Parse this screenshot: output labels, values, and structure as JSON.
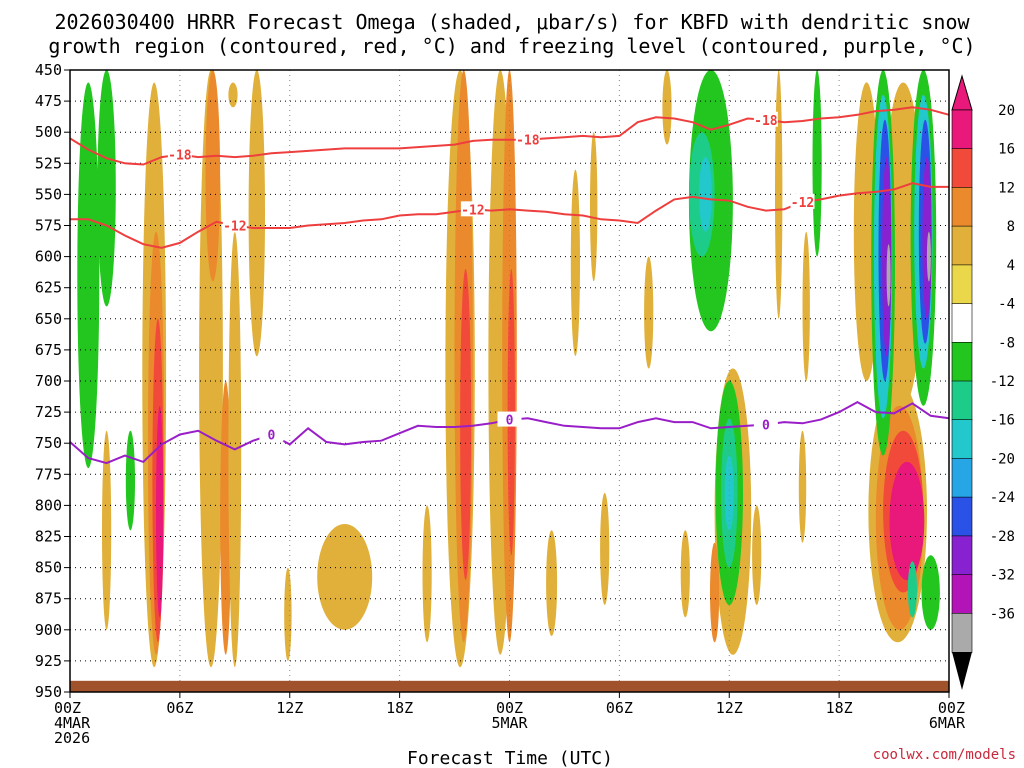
{
  "chart_data": {
    "type": "heatmap",
    "title_line1": "2026030400 HRRR Forecast Omega (shaded, μbar/s) for KBFD with dendritic snow",
    "title_line2": "growth region (contoured, red, °C) and freezing level (contoured, purple, °C)",
    "xlabel": "Forecast Time (UTC)",
    "credit": "coolwx.com/models",
    "x_range_hours": [
      0,
      48
    ],
    "pressure_range": [
      450,
      950
    ],
    "y_ticks": [
      "450",
      "475",
      "500",
      "525",
      "550",
      "575",
      "600",
      "625",
      "650",
      "675",
      "700",
      "725",
      "750",
      "775",
      "800",
      "825",
      "850",
      "875",
      "900",
      "925",
      "950"
    ],
    "x_ticks": [
      {
        "h": 0,
        "line1": "00Z",
        "line2": "4MAR",
        "line3": "2026"
      },
      {
        "h": 6,
        "line1": "06Z",
        "line2": "",
        "line3": ""
      },
      {
        "h": 12,
        "line1": "12Z",
        "line2": "",
        "line3": ""
      },
      {
        "h": 18,
        "line1": "18Z",
        "line2": "",
        "line3": ""
      },
      {
        "h": 24,
        "line1": "00Z",
        "line2": "5MAR",
        "line3": ""
      },
      {
        "h": 30,
        "line1": "06Z",
        "line2": "",
        "line3": ""
      },
      {
        "h": 36,
        "line1": "12Z",
        "line2": "",
        "line3": ""
      },
      {
        "h": 42,
        "line1": "18Z",
        "line2": "",
        "line3": ""
      },
      {
        "h": 48,
        "line1": "00Z",
        "line2": "6MAR",
        "line3": ""
      }
    ],
    "colorbar": [
      {
        "label": "20",
        "color": "#e8197a"
      },
      {
        "label": "16",
        "color": "#f24a3a"
      },
      {
        "label": "12",
        "color": "#ea8a2c"
      },
      {
        "label": "8",
        "color": "#e0b03a"
      },
      {
        "label": "4",
        "color": "#ebd84a"
      },
      {
        "label": "-4",
        "color": "#ffffff"
      },
      {
        "label": "-8",
        "color": "#22c61e"
      },
      {
        "label": "-12",
        "color": "#1ecc8a"
      },
      {
        "label": "-16",
        "color": "#22c8cc"
      },
      {
        "label": "-20",
        "color": "#27a6e6"
      },
      {
        "label": "-24",
        "color": "#2a52e6"
      },
      {
        "label": "-28",
        "color": "#8822d0"
      },
      {
        "label": "-32",
        "color": "#b314b8"
      },
      {
        "label": "-36",
        "color": "#aaaaaa"
      }
    ],
    "colorbar_top_color": "#e8197a",
    "colorbar_bottom_color": "#000000",
    "series": [
      {
        "name": "-18",
        "color": "#ee3e3e",
        "label": "-18",
        "points": [
          [
            0,
            505
          ],
          [
            1,
            514
          ],
          [
            2,
            521
          ],
          [
            3,
            525
          ],
          [
            4,
            526
          ],
          [
            5,
            520
          ],
          [
            6,
            518
          ],
          [
            7,
            520
          ],
          [
            8,
            519
          ],
          [
            9,
            520
          ],
          [
            10,
            519
          ],
          [
            11,
            517
          ],
          [
            12,
            516
          ],
          [
            13,
            515
          ],
          [
            14,
            514
          ],
          [
            15,
            513
          ],
          [
            16,
            513
          ],
          [
            17,
            513
          ],
          [
            18,
            513
          ],
          [
            19,
            512
          ],
          [
            20,
            511
          ],
          [
            21,
            510
          ],
          [
            22,
            507
          ],
          [
            23,
            506
          ],
          [
            24,
            506
          ],
          [
            25,
            506
          ],
          [
            26,
            505
          ],
          [
            27,
            504
          ],
          [
            28,
            503
          ],
          [
            29,
            504
          ],
          [
            30,
            503
          ],
          [
            31,
            492
          ],
          [
            32,
            488
          ],
          [
            33,
            489
          ],
          [
            34,
            492
          ],
          [
            35,
            498
          ],
          [
            36,
            494
          ],
          [
            37,
            489
          ],
          [
            38,
            490
          ],
          [
            39,
            492
          ],
          [
            40,
            491
          ],
          [
            41,
            489
          ],
          [
            42,
            488
          ],
          [
            43,
            486
          ],
          [
            44,
            483
          ],
          [
            45,
            482
          ],
          [
            46,
            480
          ],
          [
            47,
            482
          ],
          [
            48,
            486
          ]
        ]
      },
      {
        "name": "-12",
        "color": "#ee3e3e",
        "label": "-12",
        "points": [
          [
            0,
            570
          ],
          [
            1,
            570
          ],
          [
            2,
            575
          ],
          [
            3,
            583
          ],
          [
            4,
            590
          ],
          [
            5,
            593
          ],
          [
            6,
            589
          ],
          [
            7,
            580
          ],
          [
            8,
            572
          ],
          [
            9,
            575
          ],
          [
            10,
            577
          ],
          [
            11,
            577
          ],
          [
            12,
            577
          ],
          [
            13,
            575
          ],
          [
            14,
            574
          ],
          [
            15,
            573
          ],
          [
            16,
            571
          ],
          [
            17,
            570
          ],
          [
            18,
            567
          ],
          [
            19,
            566
          ],
          [
            20,
            566
          ],
          [
            21,
            564
          ],
          [
            22,
            562
          ],
          [
            23,
            563
          ],
          [
            24,
            562
          ],
          [
            25,
            563
          ],
          [
            26,
            564
          ],
          [
            27,
            566
          ],
          [
            28,
            567
          ],
          [
            29,
            570
          ],
          [
            30,
            571
          ],
          [
            31,
            573
          ],
          [
            32,
            563
          ],
          [
            33,
            554
          ],
          [
            34,
            552
          ],
          [
            35,
            554
          ],
          [
            36,
            555
          ],
          [
            37,
            560
          ],
          [
            38,
            563
          ],
          [
            39,
            562
          ],
          [
            40,
            556
          ],
          [
            41,
            554
          ],
          [
            42,
            551
          ],
          [
            43,
            549
          ],
          [
            44,
            548
          ],
          [
            45,
            546
          ],
          [
            46,
            541
          ],
          [
            47,
            544
          ],
          [
            48,
            544
          ]
        ]
      },
      {
        "name": "0",
        "color": "#9a1ec8",
        "label": "0",
        "points": [
          [
            0,
            749
          ],
          [
            1,
            762
          ],
          [
            2,
            766
          ],
          [
            3,
            760
          ],
          [
            4,
            765
          ],
          [
            5,
            751
          ],
          [
            6,
            743
          ],
          [
            7,
            740
          ],
          [
            8,
            748
          ],
          [
            9,
            755
          ],
          [
            10,
            748
          ],
          [
            11,
            743
          ],
          [
            12,
            751
          ],
          [
            13,
            738
          ],
          [
            14,
            749
          ],
          [
            15,
            751
          ],
          [
            16,
            749
          ],
          [
            17,
            748
          ],
          [
            18,
            742
          ],
          [
            19,
            736
          ],
          [
            20,
            737
          ],
          [
            21,
            737
          ],
          [
            22,
            736
          ],
          [
            23,
            734
          ],
          [
            24,
            731
          ],
          [
            25,
            730
          ],
          [
            26,
            733
          ],
          [
            27,
            736
          ],
          [
            28,
            737
          ],
          [
            29,
            738
          ],
          [
            30,
            738
          ],
          [
            31,
            733
          ],
          [
            32,
            730
          ],
          [
            33,
            733
          ],
          [
            34,
            733
          ],
          [
            35,
            738
          ],
          [
            36,
            737
          ],
          [
            37,
            736
          ],
          [
            38,
            735
          ],
          [
            39,
            733
          ],
          [
            40,
            734
          ],
          [
            41,
            731
          ],
          [
            42,
            725
          ],
          [
            43,
            717
          ],
          [
            44,
            725
          ],
          [
            45,
            726
          ],
          [
            46,
            718
          ],
          [
            47,
            728
          ],
          [
            48,
            730
          ]
        ]
      }
    ],
    "omega_cells": [
      {
        "h": 1,
        "p0": 460,
        "p1": 770,
        "w": 1.2,
        "v": -8
      },
      {
        "h": 2,
        "p0": 450,
        "p1": 640,
        "w": 1.0,
        "v": -8
      },
      {
        "h": 3.3,
        "p0": 740,
        "p1": 820,
        "w": 0.5,
        "v": -8
      },
      {
        "h": 2.0,
        "p0": 740,
        "p1": 900,
        "w": 0.5,
        "v": 8
      },
      {
        "h": 4.6,
        "p0": 460,
        "p1": 930,
        "w": 1.3,
        "v": 8
      },
      {
        "h": 4.7,
        "p0": 580,
        "p1": 920,
        "w": 0.9,
        "v": 12
      },
      {
        "h": 4.8,
        "p0": 650,
        "p1": 910,
        "w": 0.6,
        "v": 16
      },
      {
        "h": 4.9,
        "p0": 720,
        "p1": 890,
        "w": 0.4,
        "v": 20
      },
      {
        "h": 7.7,
        "p0": 450,
        "p1": 930,
        "w": 1.3,
        "v": 8
      },
      {
        "h": 7.8,
        "p0": 450,
        "p1": 620,
        "w": 0.8,
        "v": 12
      },
      {
        "h": 8.5,
        "p0": 700,
        "p1": 920,
        "w": 0.6,
        "v": 12
      },
      {
        "h": 9.0,
        "p0": 580,
        "p1": 930,
        "w": 0.7,
        "v": 8
      },
      {
        "h": 10.2,
        "p0": 450,
        "p1": 680,
        "w": 0.9,
        "v": 8
      },
      {
        "h": 8.9,
        "p0": 460,
        "p1": 480,
        "w": 0.5,
        "v": 8
      },
      {
        "h": 11.9,
        "p0": 850,
        "p1": 925,
        "w": 0.4,
        "v": 8
      },
      {
        "h": 15,
        "p0": 815,
        "p1": 900,
        "w": 3.0,
        "v": 8
      },
      {
        "h": 21.3,
        "p0": 450,
        "p1": 930,
        "w": 1.6,
        "v": 8
      },
      {
        "h": 21.5,
        "p0": 450,
        "p1": 910,
        "w": 1.0,
        "v": 12
      },
      {
        "h": 21.6,
        "p0": 610,
        "p1": 860,
        "w": 0.6,
        "v": 16
      },
      {
        "h": 23.5,
        "p0": 450,
        "p1": 920,
        "w": 1.3,
        "v": 8
      },
      {
        "h": 24.0,
        "p0": 450,
        "p1": 910,
        "w": 0.8,
        "v": 12
      },
      {
        "h": 24.1,
        "p0": 610,
        "p1": 840,
        "w": 0.4,
        "v": 16
      },
      {
        "h": 19.5,
        "p0": 800,
        "p1": 910,
        "w": 0.5,
        "v": 8
      },
      {
        "h": 26.3,
        "p0": 820,
        "p1": 905,
        "w": 0.6,
        "v": 8
      },
      {
        "h": 27.6,
        "p0": 530,
        "p1": 680,
        "w": 0.5,
        "v": 8
      },
      {
        "h": 28.6,
        "p0": 500,
        "p1": 620,
        "w": 0.4,
        "v": 8
      },
      {
        "h": 29.2,
        "p0": 790,
        "p1": 880,
        "w": 0.5,
        "v": 8
      },
      {
        "h": 31.6,
        "p0": 600,
        "p1": 690,
        "w": 0.5,
        "v": 8
      },
      {
        "h": 32.6,
        "p0": 450,
        "p1": 510,
        "w": 0.5,
        "v": 8
      },
      {
        "h": 33.6,
        "p0": 820,
        "p1": 890,
        "w": 0.5,
        "v": 8
      },
      {
        "h": 36.2,
        "p0": 690,
        "p1": 920,
        "w": 2.0,
        "v": 8
      },
      {
        "h": 35.2,
        "p0": 830,
        "p1": 910,
        "w": 0.5,
        "v": 12
      },
      {
        "h": 37.5,
        "p0": 800,
        "p1": 880,
        "w": 0.5,
        "v": 8
      },
      {
        "h": 38.7,
        "p0": 450,
        "p1": 650,
        "w": 0.4,
        "v": 8
      },
      {
        "h": 40.2,
        "p0": 580,
        "p1": 700,
        "w": 0.4,
        "v": 8
      },
      {
        "h": 40.0,
        "p0": 740,
        "p1": 830,
        "w": 0.4,
        "v": 8
      },
      {
        "h": 43.5,
        "p0": 460,
        "p1": 700,
        "w": 1.4,
        "v": 8
      },
      {
        "h": 45.5,
        "p0": 460,
        "p1": 720,
        "w": 2.2,
        "v": 8
      },
      {
        "h": 45.2,
        "p0": 700,
        "p1": 910,
        "w": 3.2,
        "v": 8
      },
      {
        "h": 45.3,
        "p0": 720,
        "p1": 900,
        "w": 2.6,
        "v": 12
      },
      {
        "h": 45.5,
        "p0": 740,
        "p1": 870,
        "w": 2.2,
        "v": 16
      },
      {
        "h": 45.7,
        "p0": 765,
        "p1": 860,
        "w": 1.9,
        "v": 20
      },
      {
        "h": 36.0,
        "p0": 700,
        "p1": 880,
        "w": 1.5,
        "v": -8
      },
      {
        "h": 36.0,
        "p0": 730,
        "p1": 850,
        "w": 0.9,
        "v": -12
      },
      {
        "h": 36.0,
        "p0": 760,
        "p1": 820,
        "w": 0.5,
        "v": -16
      },
      {
        "h": 35.0,
        "p0": 450,
        "p1": 660,
        "w": 2.4,
        "v": -8
      },
      {
        "h": 34.5,
        "p0": 500,
        "p1": 600,
        "w": 1.4,
        "v": -12
      },
      {
        "h": 34.7,
        "p0": 520,
        "p1": 580,
        "w": 0.7,
        "v": -16
      },
      {
        "h": 40.8,
        "p0": 450,
        "p1": 600,
        "w": 0.5,
        "v": -8
      },
      {
        "h": 47.0,
        "p0": 840,
        "p1": 900,
        "w": 1.0,
        "v": -8
      },
      {
        "h": 46.0,
        "p0": 845,
        "p1": 890,
        "w": 0.5,
        "v": -12
      },
      {
        "h": 44.4,
        "p0": 450,
        "p1": 760,
        "w": 1.3,
        "v": -8
      },
      {
        "h": 44.4,
        "p0": 470,
        "p1": 730,
        "w": 1.0,
        "v": -16
      },
      {
        "h": 44.5,
        "p0": 490,
        "p1": 700,
        "w": 0.7,
        "v": -24
      },
      {
        "h": 44.6,
        "p0": 520,
        "p1": 680,
        "w": 0.5,
        "v": -28
      },
      {
        "h": 44.7,
        "p0": 590,
        "p1": 640,
        "w": 0.2,
        "v": -36
      },
      {
        "h": 46.6,
        "p0": 450,
        "p1": 720,
        "w": 1.4,
        "v": -8
      },
      {
        "h": 46.6,
        "p0": 470,
        "p1": 690,
        "w": 1.0,
        "v": -16
      },
      {
        "h": 46.7,
        "p0": 490,
        "p1": 670,
        "w": 0.7,
        "v": -24
      },
      {
        "h": 46.8,
        "p0": 520,
        "p1": 650,
        "w": 0.5,
        "v": -28
      },
      {
        "h": 46.9,
        "p0": 580,
        "p1": 620,
        "w": 0.2,
        "v": -36
      }
    ]
  }
}
